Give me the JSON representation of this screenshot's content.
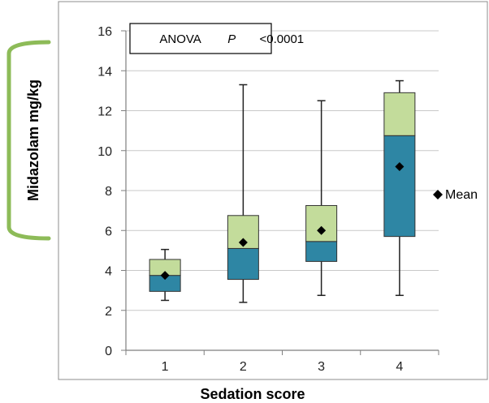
{
  "chart_data": {
    "type": "box",
    "xlabel": "Sedation score",
    "ylabel": "Midazolam mg/kg",
    "ylim": [
      0,
      16
    ],
    "yticks": [
      "0",
      "2",
      "4",
      "6",
      "8",
      "10",
      "12",
      "14",
      "16"
    ],
    "categories": [
      "1",
      "2",
      "3",
      "4"
    ],
    "boxes": [
      {
        "category": "1",
        "min": 2.5,
        "q1": 2.95,
        "median": 3.75,
        "q3": 4.55,
        "max": 5.05,
        "mean": 3.75
      },
      {
        "category": "2",
        "min": 2.4,
        "q1": 3.55,
        "median": 5.1,
        "q3": 6.75,
        "max": 13.3,
        "mean": 5.4
      },
      {
        "category": "3",
        "min": 2.75,
        "q1": 4.45,
        "median": 5.45,
        "q3": 7.25,
        "max": 12.5,
        "mean": 6.0
      },
      {
        "category": "4",
        "min": 2.75,
        "q1": 5.7,
        "median": 10.75,
        "q3": 12.9,
        "max": 13.5,
        "mean": 9.2
      }
    ],
    "annotation": {
      "prefix": "ANOVA ",
      "italic": "P",
      "suffix": "<0.0001"
    },
    "legend": {
      "label": "Mean",
      "position": "right"
    },
    "grid": true,
    "colors": {
      "lower_box": "#2e86a4",
      "upper_box": "#c3dc9b",
      "bracket": "#8dbb58",
      "grid": "#c9c9c9",
      "axis": "#7f7f7f"
    }
  }
}
